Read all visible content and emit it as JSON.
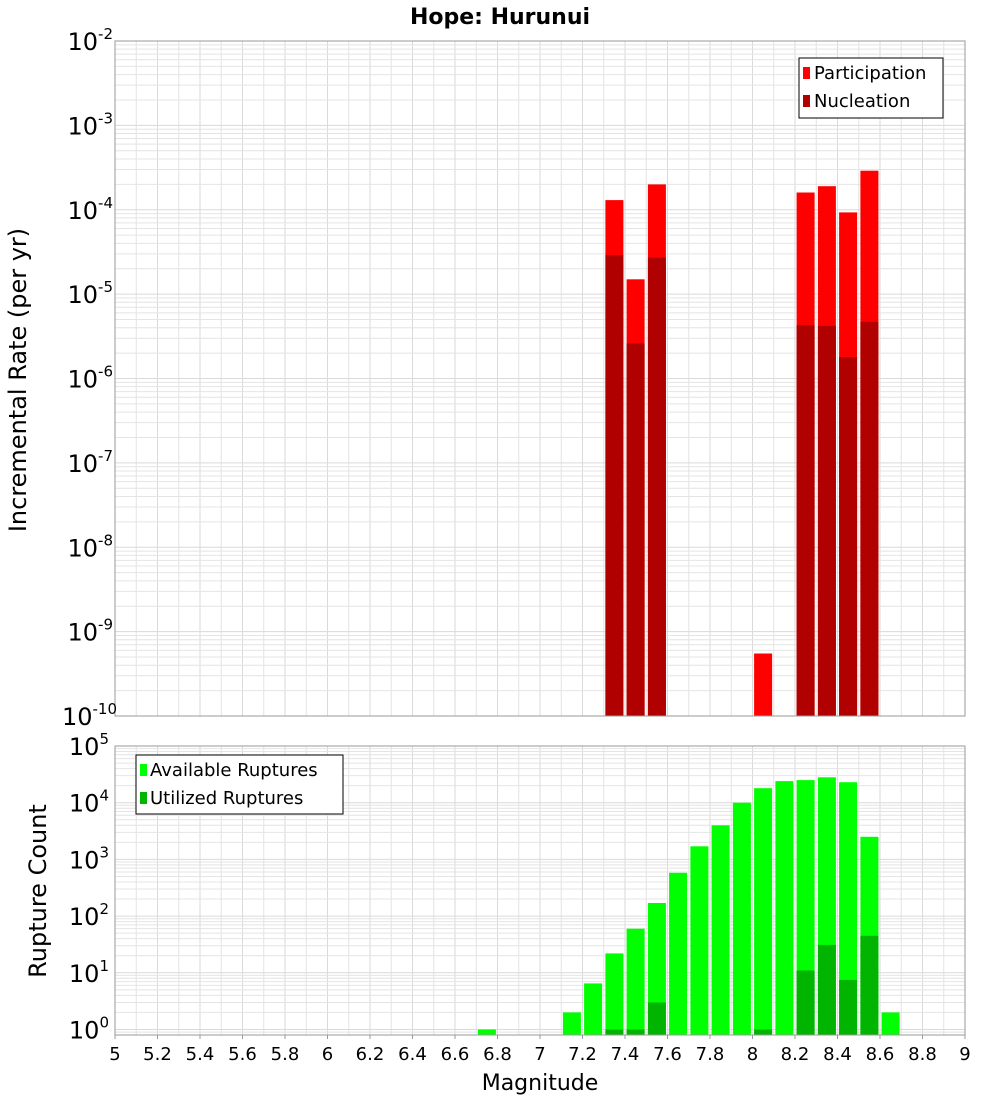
{
  "title": "Hope: Hurunui",
  "chart_data": [
    {
      "type": "bar",
      "panel": "top",
      "ylabel": "Incremental Rate (per yr)",
      "xlabel": "",
      "yscale": "log",
      "ylim": [
        1e-10,
        0.01
      ],
      "xlim": [
        5,
        9
      ],
      "ytick_exponents": [
        -2,
        -3,
        -4,
        -5,
        -6,
        -7,
        -8,
        -9,
        -10
      ],
      "legend_position": "top-right",
      "series": [
        {
          "name": "Participation",
          "color": "#ff0000",
          "x": [
            7.35,
            7.45,
            7.55,
            8.05,
            8.25,
            8.35,
            8.45,
            8.55
          ],
          "values": [
            0.00013,
            1.5e-05,
            0.0002,
            5.5e-10,
            0.00016,
            0.00019,
            9.3e-05,
            0.00029
          ]
        },
        {
          "name": "Nucleation",
          "color": "#b00000",
          "x": [
            7.35,
            7.45,
            7.55,
            8.25,
            8.35,
            8.45,
            8.55
          ],
          "values": [
            2.9e-05,
            2.6e-06,
            2.7e-05,
            4.3e-06,
            4.2e-06,
            1.8e-06,
            4.7e-06
          ]
        }
      ]
    },
    {
      "type": "bar",
      "panel": "bottom",
      "ylabel": "Rupture Count",
      "xlabel": "Magnitude",
      "yscale": "log",
      "ylim": [
        0.8,
        100000.0
      ],
      "xlim": [
        5,
        9
      ],
      "ytick_exponents": [
        5,
        4,
        3,
        2,
        1,
        0
      ],
      "xticks": [
        "5",
        "5.2",
        "5.4",
        "5.6",
        "5.8",
        "6",
        "6.2",
        "6.4",
        "6.6",
        "6.8",
        "7",
        "7.2",
        "7.4",
        "7.6",
        "7.8",
        "8",
        "8.2",
        "8.4",
        "8.6",
        "8.8",
        "9"
      ],
      "legend_position": "top-left",
      "series": [
        {
          "name": "Available Ruptures",
          "color": "#00ff00",
          "x": [
            6.75,
            7.15,
            7.25,
            7.35,
            7.45,
            7.55,
            7.65,
            7.75,
            7.85,
            7.95,
            8.05,
            8.15,
            8.25,
            8.35,
            8.45,
            8.55,
            8.65
          ],
          "values": [
            1,
            2,
            6.5,
            22,
            60,
            170,
            580,
            1700,
            4000,
            10000,
            18000,
            24000,
            25000,
            28000,
            23000,
            2500,
            2
          ]
        },
        {
          "name": "Utilized Ruptures",
          "color": "#00b400",
          "x": [
            7.35,
            7.45,
            7.55,
            8.05,
            8.25,
            8.35,
            8.45,
            8.55
          ],
          "values": [
            1,
            1,
            3,
            1,
            11,
            31,
            7.5,
            45
          ]
        }
      ]
    }
  ]
}
